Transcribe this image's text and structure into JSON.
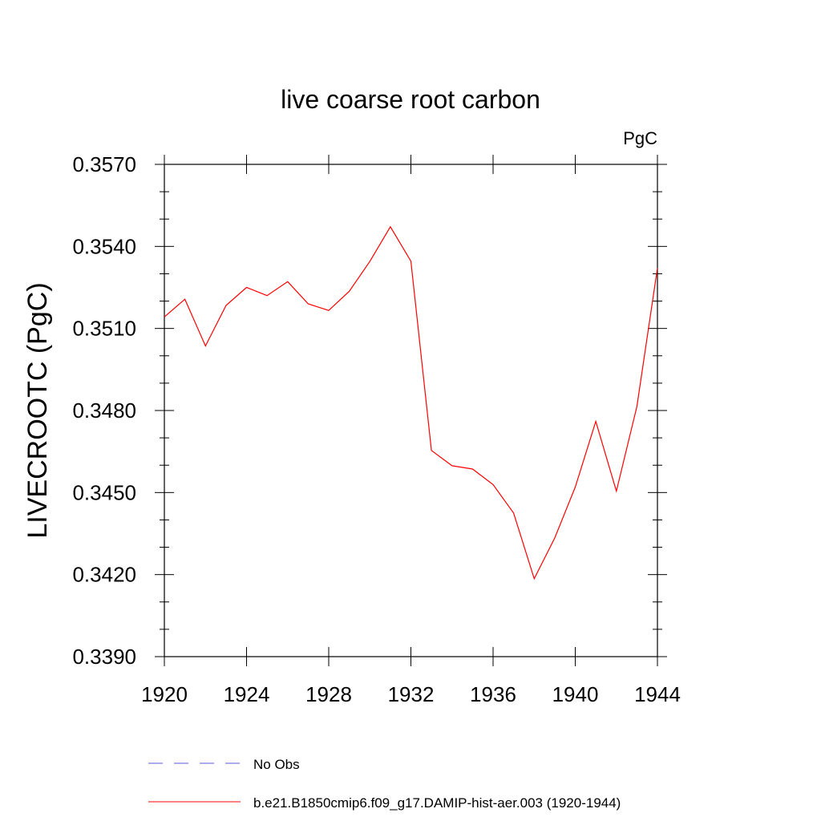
{
  "chart_data": {
    "type": "line",
    "title": "live coarse root carbon",
    "units_label": "PgC",
    "ylabel": "LIVECROOTC  (PgC)",
    "xlabel": "",
    "xlim": [
      1920,
      1944
    ],
    "ylim": [
      0.339,
      0.357
    ],
    "x_ticks": [
      1920,
      1924,
      1928,
      1932,
      1936,
      1940,
      1944
    ],
    "x_tick_labels": [
      "1920",
      "1924",
      "1928",
      "1932",
      "1936",
      "1940",
      "1944"
    ],
    "y_ticks": [
      0.339,
      0.342,
      0.345,
      0.348,
      0.351,
      0.354,
      0.357
    ],
    "y_tick_labels": [
      "0.3390",
      "0.3420",
      "0.3450",
      "0.3480",
      "0.3510",
      "0.3540",
      "0.3570"
    ],
    "grid": false,
    "legend_position": "bottom",
    "series": [
      {
        "name": "b.e21.B1850cmip6.f09_g17.DAMIP-hist-aer.003 (1920-1944)",
        "color": "#ff0000",
        "style": "solid",
        "x": [
          1920,
          1921,
          1922,
          1923,
          1924,
          1925,
          1926,
          1927,
          1928,
          1929,
          1930,
          1931,
          1932,
          1933,
          1934,
          1935,
          1936,
          1937,
          1938,
          1939,
          1940,
          1941,
          1942,
          1943,
          1944
        ],
        "y": [
          0.35142,
          0.35207,
          0.35036,
          0.35184,
          0.3525,
          0.3522,
          0.35271,
          0.3519,
          0.35166,
          0.35236,
          0.35345,
          0.35472,
          0.35346,
          0.34654,
          0.34598,
          0.34586,
          0.34529,
          0.34425,
          0.34185,
          0.34334,
          0.3452,
          0.3476,
          0.34505,
          0.34815,
          0.35321
        ]
      }
    ],
    "legend_entries": [
      {
        "label": "No Obs",
        "color": "#5a5ad2",
        "style": "dashed"
      },
      {
        "label": "b.e21.B1850cmip6.f09_g17.DAMIP-hist-aer.003 (1920-1944)",
        "color": "#ff0000",
        "style": "solid"
      }
    ]
  }
}
